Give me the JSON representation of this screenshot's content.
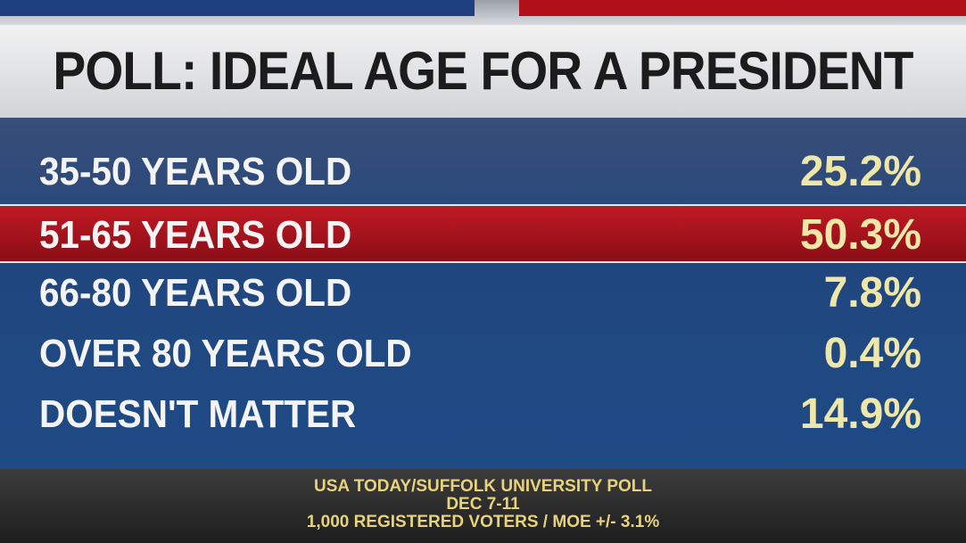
{
  "header": {
    "title": "POLL: IDEAL AGE FOR A PRESIDENT"
  },
  "table": {
    "rows": [
      {
        "label": "35-50 YEARS OLD",
        "value": "25.2%"
      },
      {
        "label": "51-65 YEARS OLD",
        "value": "50.3%"
      },
      {
        "label": "66-80 YEARS OLD",
        "value": "7.8%"
      },
      {
        "label": "OVER 80 YEARS OLD",
        "value": "0.4%"
      },
      {
        "label": "DOESN'T MATTER",
        "value": "14.9%"
      }
    ]
  },
  "footer": {
    "lines": [
      "USA TODAY/SUFFOLK UNIVERSITY POLL",
      "DEC 7-11",
      "1,000 REGISTERED VOTERS / MOE +/- 3.1%"
    ]
  }
}
